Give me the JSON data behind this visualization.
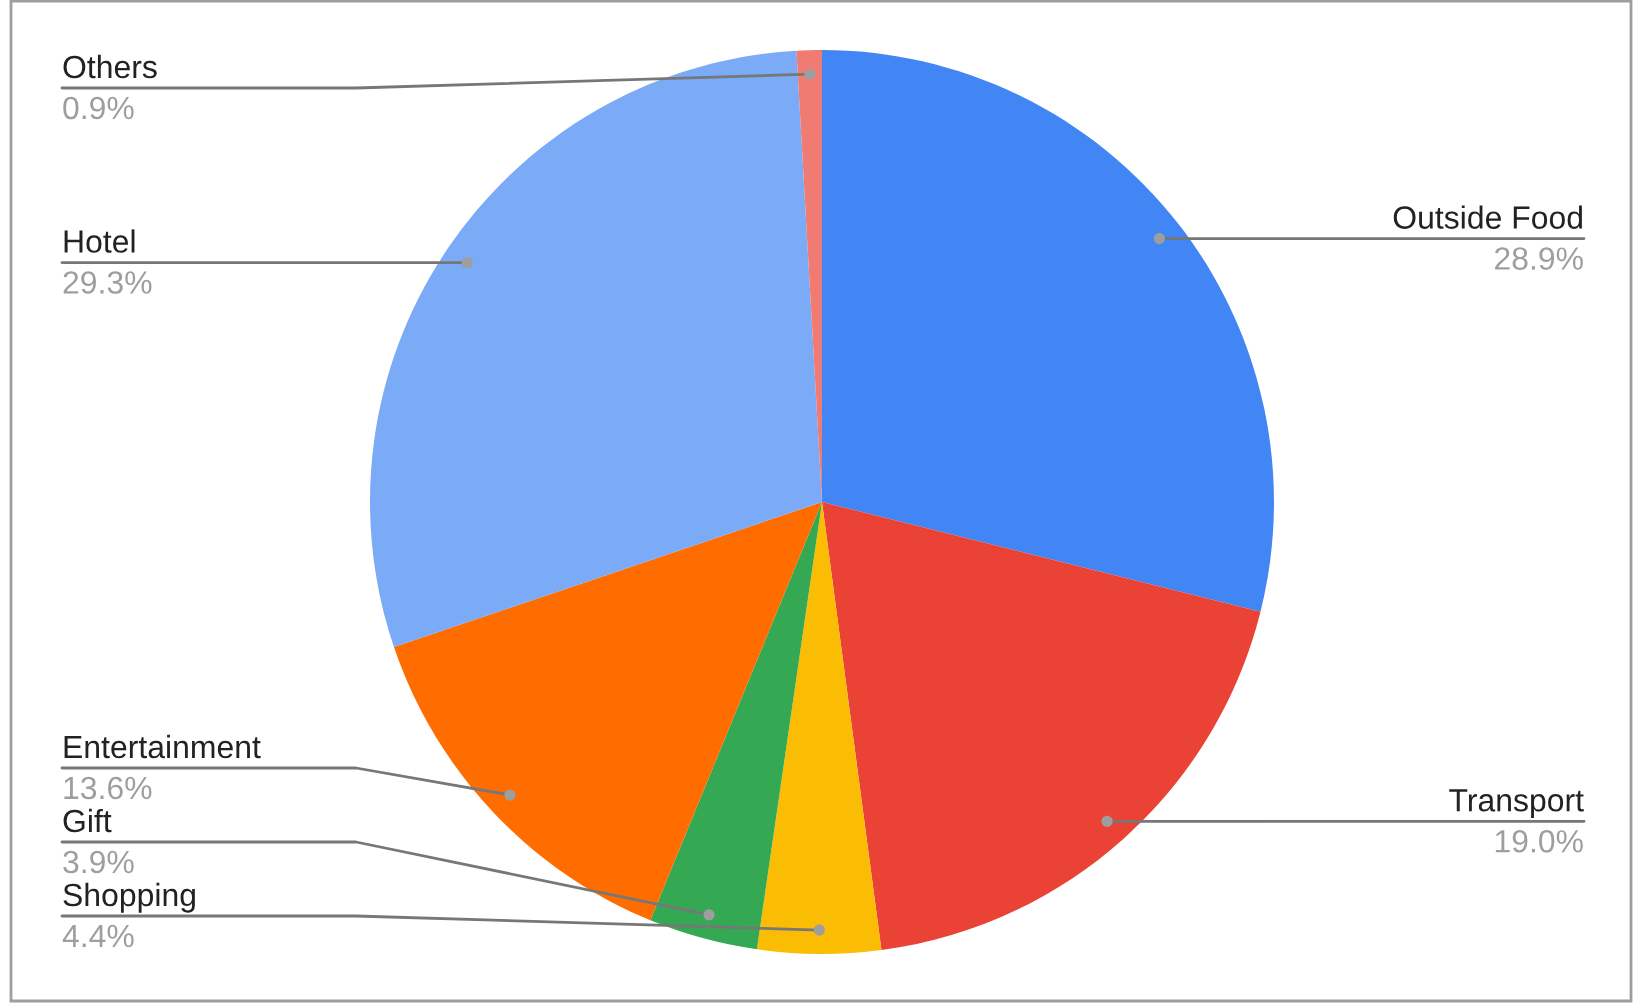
{
  "chart_data": {
    "type": "pie",
    "categories": [
      "Outside Food",
      "Transport",
      "Shopping",
      "Gift",
      "Entertainment",
      "Hotel",
      "Others"
    ],
    "values": [
      28.9,
      19.0,
      4.4,
      3.9,
      13.6,
      29.3,
      0.9
    ],
    "colors": [
      "#4285f4",
      "#ea4335",
      "#fbbc04",
      "#34a853",
      "#ff6d01",
      "#7baaf7",
      "#f07b72"
    ],
    "value_labels": [
      "28.9%",
      "19.0%",
      "4.4%",
      "3.9%",
      "13.6%",
      "29.3%",
      "0.9%"
    ]
  }
}
